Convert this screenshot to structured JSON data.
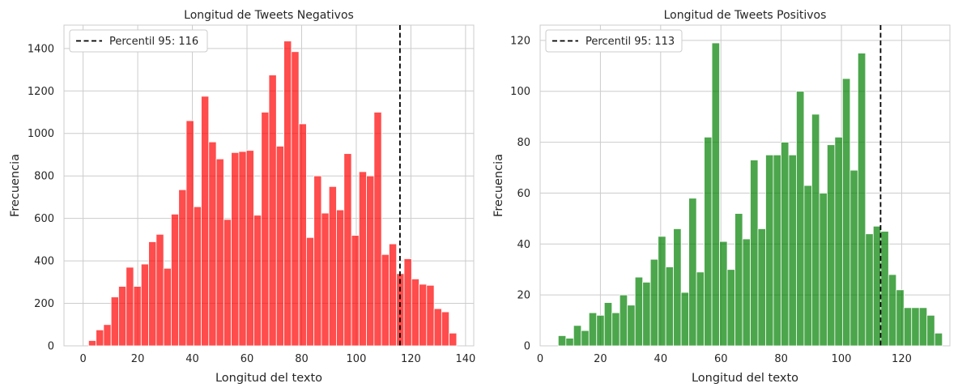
{
  "chart_data": [
    {
      "type": "bar",
      "title": "Longitud de Tweets Negativos",
      "xlabel": "Longitud del texto",
      "ylabel": "Frecuencia",
      "xlim": [
        -7,
        143
      ],
      "ylim": [
        0,
        1510
      ],
      "xticks": [
        0,
        20,
        40,
        60,
        80,
        100,
        120,
        140
      ],
      "yticks": [
        0,
        200,
        400,
        600,
        800,
        1000,
        1200,
        1400
      ],
      "grid": true,
      "bar_color": "#ff0000",
      "bin_start": 2,
      "bin_width": 2.75,
      "values": [
        25,
        75,
        100,
        230,
        280,
        370,
        280,
        385,
        490,
        525,
        365,
        620,
        735,
        1060,
        655,
        1175,
        960,
        880,
        595,
        910,
        915,
        920,
        615,
        1100,
        1275,
        940,
        1435,
        1385,
        1045,
        510,
        800,
        625,
        750,
        640,
        905,
        520,
        820,
        800,
        1100,
        430,
        480,
        340,
        410,
        315,
        290,
        285,
        175,
        160,
        60
      ],
      "reference_line": {
        "value": 116,
        "style": "dashed",
        "color": "#000000"
      },
      "legend": {
        "position": "top-left",
        "entries": [
          "Percentil 95: 116"
        ]
      }
    },
    {
      "type": "bar",
      "title": "Longitud de Tweets Positivos",
      "xlabel": "Longitud del texto",
      "ylabel": "Frecuencia",
      "xlim": [
        0,
        136
      ],
      "ylim": [
        0,
        126
      ],
      "xticks": [
        0,
        20,
        40,
        60,
        80,
        100,
        120
      ],
      "yticks": [
        0,
        20,
        40,
        60,
        80,
        100,
        120
      ],
      "grid": true,
      "bar_color": "#008000",
      "bin_start": 6,
      "bin_width": 2.55,
      "values": [
        4,
        3,
        8,
        6,
        13,
        12,
        17,
        13,
        20,
        16,
        27,
        25,
        34,
        43,
        31,
        46,
        21,
        58,
        29,
        82,
        119,
        41,
        30,
        52,
        42,
        73,
        46,
        75,
        75,
        80,
        75,
        100,
        63,
        91,
        60,
        79,
        82,
        105,
        69,
        115,
        44,
        47,
        45,
        28,
        22,
        15,
        15,
        15,
        12,
        5
      ],
      "reference_line": {
        "value": 113,
        "style": "dashed",
        "color": "#000000"
      },
      "legend": {
        "position": "top-left",
        "entries": [
          "Percentil 95: 113"
        ]
      }
    }
  ]
}
